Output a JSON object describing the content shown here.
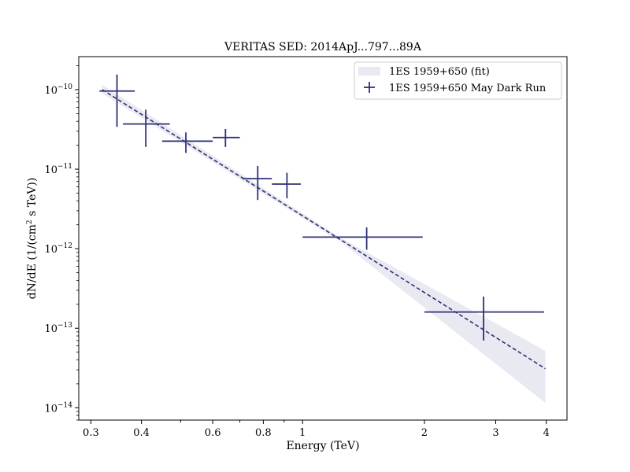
{
  "chart_data": {
    "type": "scatter",
    "title": "VERITAS SED: 2014ApJ...797...89A",
    "xlabel": "Energy (TeV)",
    "ylabel_parts": [
      "dN/dE (1/(cm",
      "2",
      " s TeV))"
    ],
    "xscale": "log",
    "yscale": "log",
    "xlim": [
      0.28,
      4.5
    ],
    "ylim": [
      7e-15,
      2.6e-10
    ],
    "x_ticks": [
      {
        "value": 0.3,
        "label": "0.3"
      },
      {
        "value": 0.4,
        "label": "0.4"
      },
      {
        "value": 0.6,
        "label": "0.6"
      },
      {
        "value": 0.8,
        "label": "0.8"
      },
      {
        "value": 1,
        "label": "1"
      },
      {
        "value": 2,
        "label": "2"
      },
      {
        "value": 3,
        "label": "3"
      },
      {
        "value": 4,
        "label": "4"
      }
    ],
    "y_ticks": [
      {
        "value": 1e-10,
        "mantissa": "10",
        "exponent": "−10"
      },
      {
        "value": 1e-11,
        "mantissa": "10",
        "exponent": "−11"
      },
      {
        "value": 1e-12,
        "mantissa": "10",
        "exponent": "−12"
      },
      {
        "value": 1e-13,
        "mantissa": "10",
        "exponent": "−13"
      },
      {
        "value": 1e-14,
        "mantissa": "10",
        "exponent": "−14"
      }
    ],
    "legend": {
      "position": "top-right",
      "entries": [
        {
          "label": "1ES 1959+650 (fit)",
          "kind": "band"
        },
        {
          "label": "1ES 1959+650 May Dark Run",
          "kind": "errorbar"
        }
      ]
    },
    "fit": {
      "x_range": [
        0.32,
        3.98
      ],
      "y_start": 1e-10,
      "y_end": 3.1e-14,
      "band_low": [
        9e-11,
        1.15e-14
      ],
      "band_high": [
        1.15e-10,
        5.2e-14
      ],
      "pivot_x": 1.25
    },
    "points": [
      {
        "x": 0.348,
        "y": 9.6e-11,
        "xlo": 0.315,
        "xhi": 0.385,
        "ylo": 3.4e-11,
        "yhi": 1.55e-10
      },
      {
        "x": 0.41,
        "y": 3.7e-11,
        "xlo": 0.36,
        "xhi": 0.47,
        "ylo": 1.9e-11,
        "yhi": 5.6e-11
      },
      {
        "x": 0.515,
        "y": 2.25e-11,
        "xlo": 0.45,
        "xhi": 0.6,
        "ylo": 1.6e-11,
        "yhi": 2.9e-11
      },
      {
        "x": 0.645,
        "y": 2.5e-11,
        "xlo": 0.6,
        "xhi": 0.7,
        "ylo": 1.9e-11,
        "yhi": 3.2e-11
      },
      {
        "x": 0.775,
        "y": 7.6e-12,
        "xlo": 0.71,
        "xhi": 0.84,
        "ylo": 4.1e-12,
        "yhi": 1.1e-11
      },
      {
        "x": 0.915,
        "y": 6.5e-12,
        "xlo": 0.84,
        "xhi": 0.99,
        "ylo": 4.3e-12,
        "yhi": 9e-12
      },
      {
        "x": 1.44,
        "y": 1.4e-12,
        "xlo": 1.0,
        "xhi": 1.98,
        "ylo": 9.7e-13,
        "yhi": 1.85e-12
      },
      {
        "x": 2.8,
        "y": 1.6e-13,
        "xlo": 2.0,
        "xhi": 3.95,
        "ylo": 7e-14,
        "yhi": 2.5e-13
      }
    ],
    "colors": {
      "series": "#2e3175",
      "band": "#e9e9f1",
      "axis": "#000000"
    }
  }
}
